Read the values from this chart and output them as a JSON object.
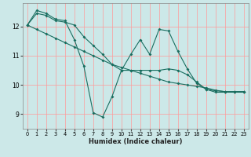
{
  "xlabel": "Humidex (Indice chaleur)",
  "background_color": "#cce8e8",
  "grid_color": "#ff9999",
  "line_color": "#1a6e60",
  "x_values": [
    0,
    1,
    2,
    3,
    4,
    5,
    6,
    7,
    8,
    9,
    10,
    11,
    12,
    13,
    14,
    15,
    16,
    17,
    18,
    19,
    20,
    21,
    22,
    23
  ],
  "series1": [
    12.05,
    12.55,
    12.45,
    12.25,
    12.2,
    11.55,
    10.65,
    9.05,
    8.9,
    9.6,
    10.5,
    11.05,
    11.55,
    11.05,
    11.9,
    11.85,
    11.15,
    10.55,
    10.05,
    9.85,
    9.75,
    9.75,
    9.75,
    9.75
  ],
  "series2": [
    12.05,
    11.9,
    11.75,
    11.6,
    11.45,
    11.3,
    11.15,
    11.0,
    10.85,
    10.7,
    10.6,
    10.5,
    10.4,
    10.3,
    10.2,
    10.1,
    10.05,
    10.0,
    9.95,
    9.9,
    9.82,
    9.77,
    9.77,
    9.77
  ],
  "series3": [
    12.05,
    12.45,
    12.38,
    12.2,
    12.15,
    12.05,
    11.65,
    11.35,
    11.05,
    10.7,
    10.5,
    10.5,
    10.5,
    10.5,
    10.5,
    10.55,
    10.5,
    10.35,
    10.1,
    9.85,
    9.8,
    9.77,
    9.77,
    9.77
  ],
  "yticks": [
    9,
    10,
    11,
    12
  ],
  "ylim": [
    8.5,
    12.8
  ],
  "xlim": [
    -0.5,
    23.5
  ]
}
